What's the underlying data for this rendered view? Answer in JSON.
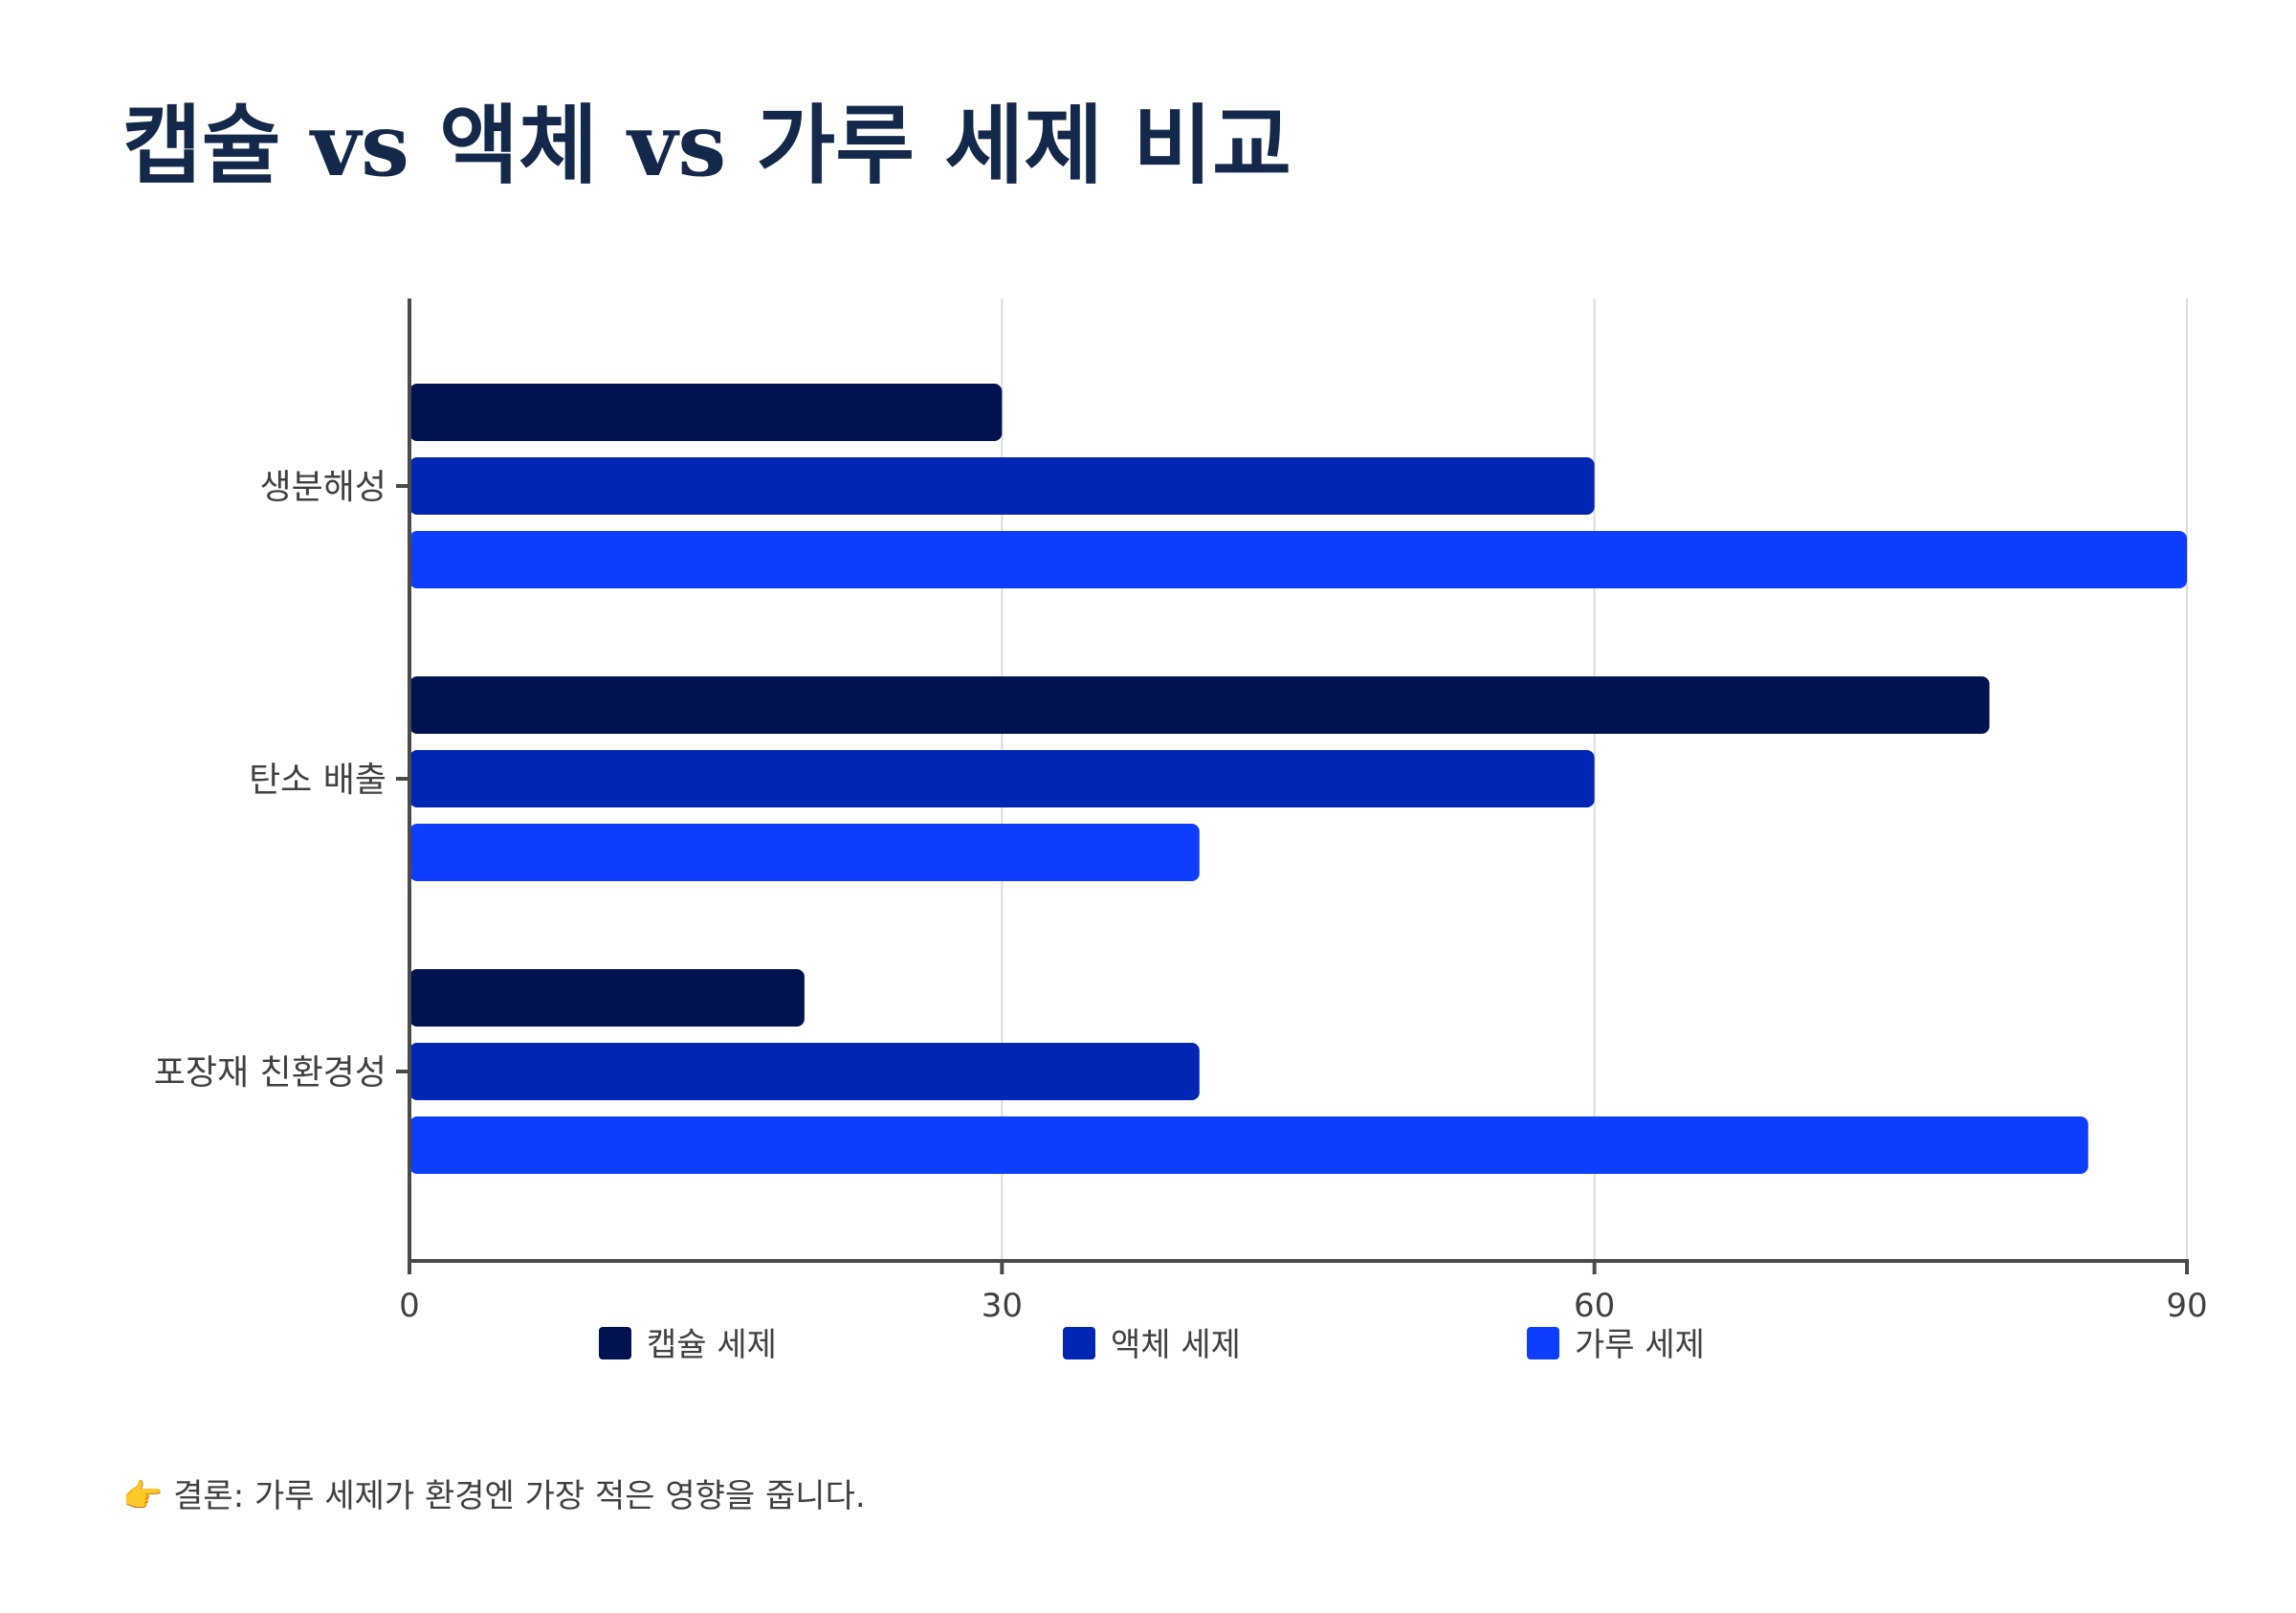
{
  "title": "캡슐 vs 액체 vs 가루 세제 비교",
  "footnote": {
    "icon": "pointing-right-hand-icon",
    "text": "👉 결론: 가루 세제가 환경엔 가장 적은 영향을 줍니다."
  },
  "chart_data": {
    "type": "bar",
    "orientation": "horizontal",
    "categories": [
      "생분해성",
      "탄소 배출",
      "포장재 친환경성"
    ],
    "series": [
      {
        "name": "캡슐 세제",
        "color": "#00124f",
        "values": [
          30,
          80,
          20
        ]
      },
      {
        "name": "액체 세제",
        "color": "#0026b3",
        "values": [
          60,
          60,
          40
        ]
      },
      {
        "name": "가루 세제",
        "color": "#0d3dff",
        "values": [
          90,
          40,
          85
        ]
      }
    ],
    "xlim": [
      0,
      90
    ],
    "xticks": [
      0,
      30,
      60,
      90
    ],
    "grid": true,
    "legend": "bottom"
  }
}
